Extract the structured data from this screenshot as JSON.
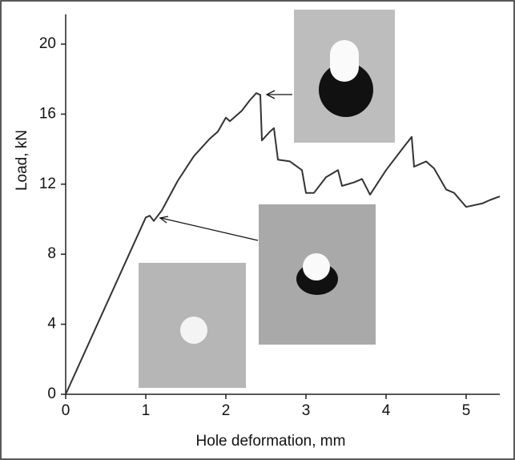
{
  "chart_data": {
    "type": "line",
    "xlabel": "Hole deformation, mm",
    "ylabel": "Load, kN",
    "x": [
      0,
      1.0,
      1.05,
      1.1,
      1.2,
      1.4,
      1.6,
      1.8,
      1.9,
      2.0,
      2.05,
      2.2,
      2.3,
      2.38,
      2.43,
      2.45,
      2.55,
      2.6,
      2.65,
      2.8,
      2.95,
      3.0,
      3.1,
      3.25,
      3.4,
      3.45,
      3.6,
      3.7,
      3.8,
      4.0,
      4.2,
      4.32,
      4.35,
      4.5,
      4.6,
      4.75,
      4.85,
      5.0,
      5.2,
      5.3,
      5.42
    ],
    "values": [
      0,
      10.1,
      10.2,
      9.9,
      10.5,
      12.2,
      13.6,
      14.6,
      15.0,
      15.8,
      15.6,
      16.2,
      16.8,
      17.2,
      17.1,
      14.5,
      15.0,
      15.2,
      13.4,
      13.3,
      12.8,
      11.5,
      11.5,
      12.4,
      12.8,
      11.9,
      12.1,
      12.3,
      11.4,
      12.8,
      14.0,
      14.7,
      13.0,
      13.3,
      12.9,
      11.7,
      11.5,
      10.7,
      10.9,
      11.1,
      11.3
    ],
    "color": "#333333",
    "xlim": [
      0,
      5.42
    ],
    "ylim": [
      0,
      21.7
    ],
    "xticks": [
      0,
      1,
      2,
      3,
      4,
      5
    ],
    "yticks": [
      0,
      4,
      8,
      12,
      16,
      20
    ]
  }
}
